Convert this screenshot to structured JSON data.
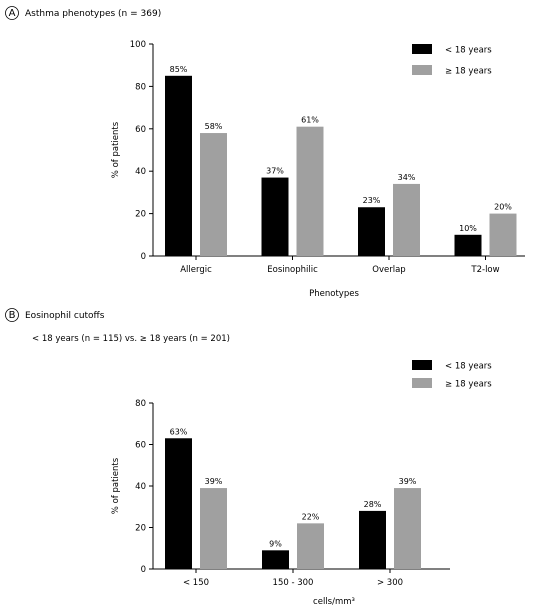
{
  "colors": {
    "under18": "#000000",
    "over18": "#a0a0a0",
    "axis": "#000000"
  },
  "panels": [
    {
      "letter": "A",
      "title": "Asthma phenotypes (n = 369)",
      "subtitle": "",
      "chart_data": {
        "type": "bar",
        "categories": [
          "Allergic",
          "Eosinophilic",
          "Overlap",
          "T2-low"
        ],
        "series": [
          {
            "name": "< 18 years",
            "values": [
              85,
              37,
              23,
              10
            ],
            "labels": [
              "85%",
              "37%",
              "23%",
              "10%"
            ]
          },
          {
            "name": "≥ 18 years",
            "values": [
              58,
              61,
              34,
              20
            ],
            "labels": [
              "58%",
              "61%",
              "34%",
              "20%"
            ]
          }
        ],
        "yticks": [
          0,
          20,
          40,
          60,
          80,
          100
        ],
        "ylim": [
          0,
          100
        ],
        "ylabel": "% of patients",
        "xlabel": "Phenotypes",
        "legend": "top-right",
        "grid": false
      }
    },
    {
      "letter": "B",
      "title": "Eosinophil cutoffs",
      "subtitle": "< 18 years (n = 115) vs. ≥ 18 years (n = 201)",
      "chart_data": {
        "type": "bar",
        "categories": [
          "< 150",
          "150 - 300",
          "> 300"
        ],
        "series": [
          {
            "name": "< 18 years",
            "values": [
              63,
              9,
              28
            ],
            "labels": [
              "63%",
              "9%",
              "28%"
            ]
          },
          {
            "name": "≥ 18 years",
            "values": [
              39,
              22,
              39
            ],
            "labels": [
              "39%",
              "22%",
              "39%"
            ]
          }
        ],
        "yticks": [
          0,
          20,
          40,
          60,
          80
        ],
        "ylim": [
          0,
          80
        ],
        "ylabel": "% of patients",
        "xlabel": "cells/mm³",
        "legend": "top-right",
        "grid": false
      }
    }
  ]
}
